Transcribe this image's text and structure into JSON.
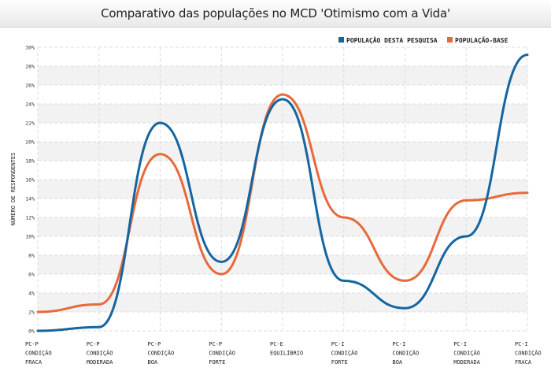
{
  "chart_data": {
    "type": "line",
    "title": "Comparativo das populações no MCD 'Otimismo com a Vida'",
    "ylabel": "NÚMERO DE RESPONDENTES",
    "xlabel": "",
    "ylim": [
      0,
      30
    ],
    "y_ticks": [
      "0%",
      "2%",
      "4%",
      "6%",
      "8%",
      "10%",
      "12%",
      "14%",
      "16%",
      "18%",
      "20%",
      "22%",
      "24%",
      "26%",
      "28%",
      "30%"
    ],
    "grid": true,
    "legend_position": "top-right",
    "categories": [
      [
        "PC-P",
        "CONDIÇÃO",
        "FRACA"
      ],
      [
        "PC-P",
        "CONDIÇÃO",
        "MODERADA"
      ],
      [
        "PC-P",
        "CONDIÇÃO",
        "BOA"
      ],
      [
        "PC-P",
        "CONDIÇÃO",
        "FORTE"
      ],
      [
        "PC-E",
        "EQUILÍBRIO"
      ],
      [
        "PC-I",
        "CONDIÇÃO",
        "FORTE"
      ],
      [
        "PC-I",
        "CONDIÇÃO",
        "BOA"
      ],
      [
        "PC-I",
        "CONDIÇÃO",
        "MODERADA"
      ],
      [
        "PC-I",
        "CONDIÇÃO",
        "FRACA"
      ]
    ],
    "series": [
      {
        "name": "POPULAÇÃO DESTA PESQUISA",
        "color": "#1565a0",
        "values": [
          0.0,
          0.4,
          22.0,
          7.3,
          24.5,
          5.3,
          2.4,
          10.0,
          29.2
        ]
      },
      {
        "name": "POPULAÇÃO-BASE",
        "color": "#e8693a",
        "values": [
          2.0,
          2.8,
          18.7,
          6.0,
          25.0,
          12.0,
          5.3,
          13.8,
          14.6
        ]
      }
    ]
  }
}
